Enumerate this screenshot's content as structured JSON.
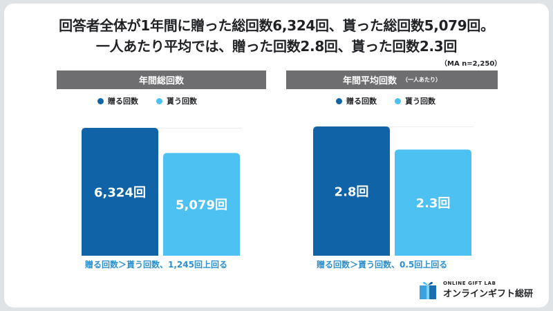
{
  "headline": {
    "line1": "回答者全体が1年間に贈った総回数6,324回、貰った総回数5,079回。",
    "line2": "一人あたり平均では、贈った回数2.8回、貰った回数2.3回",
    "note": "（MA n=2,250）"
  },
  "legend": {
    "give": "贈る回数",
    "receive": "貰う回数"
  },
  "colors": {
    "give": "#0f63a6",
    "receive": "#4cc1f2",
    "header": "#6e6e71",
    "caption": "#2b8fd0"
  },
  "panels": [
    {
      "header": "年間総回数",
      "header_sub": "",
      "caption": "贈る回数＞貰う回数、1,245回上回る"
    },
    {
      "header": "年間平均回数",
      "header_sub": "（一人あたり）",
      "caption": "贈る回数＞貰う回数、0.5回上回る"
    }
  ],
  "chart_data": [
    {
      "type": "bar",
      "title": "年間総回数",
      "categories": [
        "贈る回数",
        "貰う回数"
      ],
      "values": [
        6324,
        5079
      ],
      "labels": [
        "6,324回",
        "5,079回"
      ],
      "ylim": [
        0,
        6324
      ],
      "colors": [
        "#0f63a6",
        "#4cc1f2"
      ]
    },
    {
      "type": "bar",
      "title": "年間平均回数",
      "categories": [
        "贈る回数",
        "貰う回数"
      ],
      "values": [
        2.8,
        2.3
      ],
      "labels": [
        "2.8回",
        "2.3回"
      ],
      "ylim": [
        0,
        2.8
      ],
      "colors": [
        "#0f63a6",
        "#4cc1f2"
      ]
    }
  ],
  "brand": {
    "top": "ONLINE GIFT LAB",
    "bottom": "オンラインギフト総研"
  }
}
